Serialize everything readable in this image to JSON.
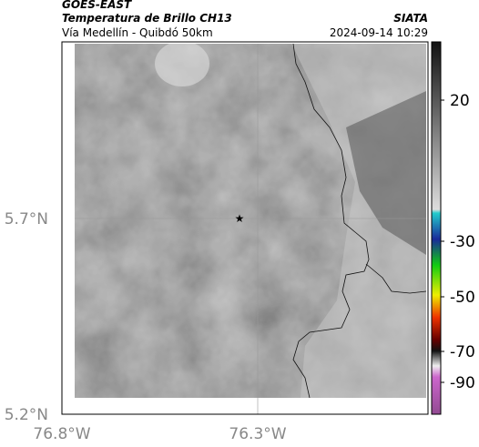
{
  "header": {
    "source": "GOES-EAST",
    "title": "Temperatura de Brillo CH13",
    "subtitle": "Vía Medellín - Quibdó 50km",
    "agency": "SIATA",
    "datetime": "2024-09-14 10:29"
  },
  "map": {
    "lat_labels": [
      "5.7°N",
      "5.2°N"
    ],
    "lon_labels": [
      "76.8°W",
      "76.3°W"
    ]
  },
  "colorbar": {
    "ticks": [
      20,
      -30,
      -50,
      -70,
      -90
    ]
  }
}
